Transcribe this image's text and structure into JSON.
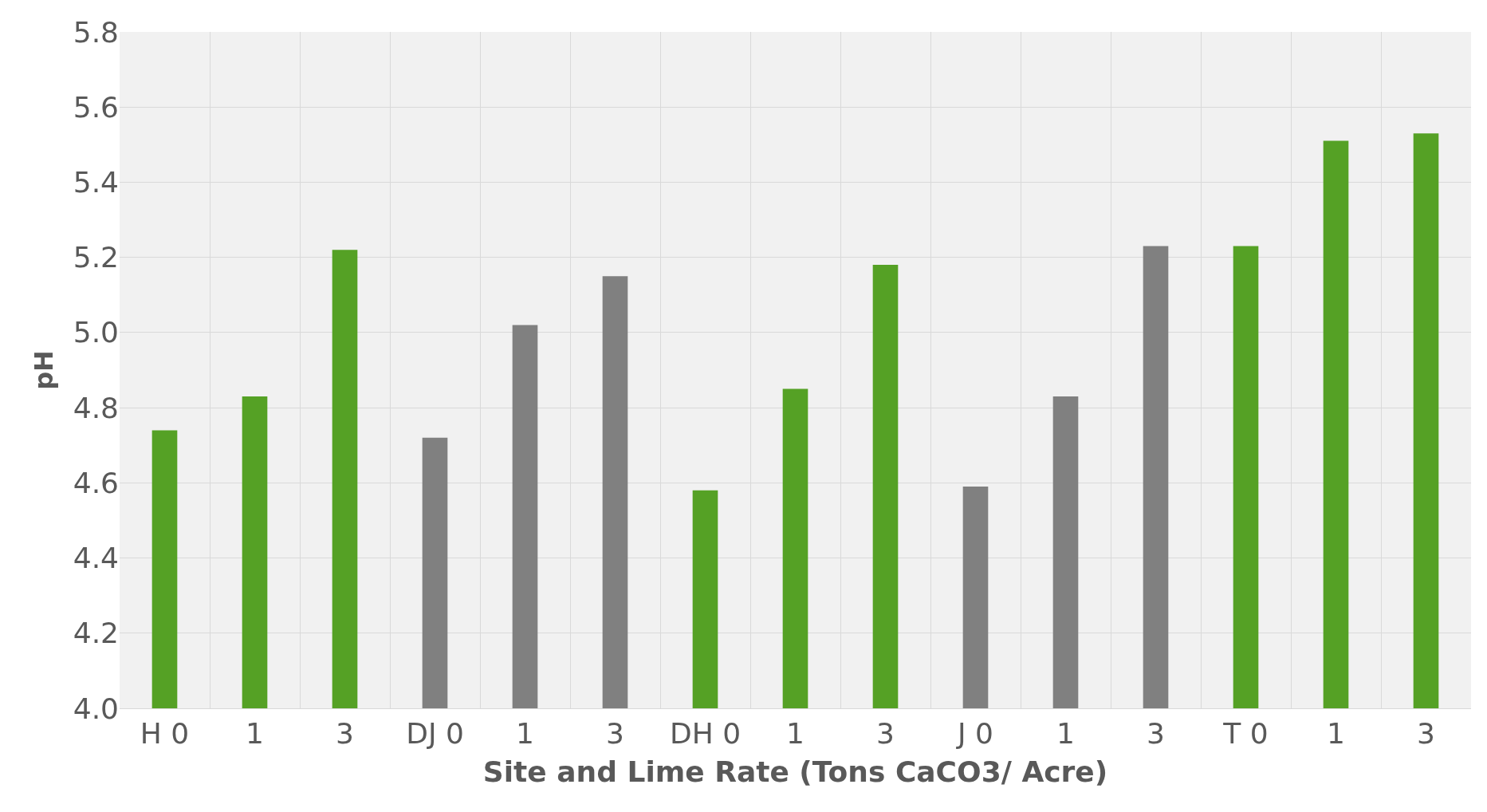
{
  "chart_data": {
    "type": "bar",
    "xlabel": "Site and Lime Rate (Tons CaCO3/ Acre)",
    "ylabel": "pH",
    "categories": [
      "H 0",
      "1",
      "3",
      "DJ 0",
      "1",
      "3",
      "DH 0",
      "1",
      "3",
      "J 0",
      "1",
      "3",
      "T 0",
      "1",
      "3"
    ],
    "values": [
      4.74,
      4.83,
      5.22,
      4.72,
      5.02,
      5.15,
      4.58,
      4.85,
      5.18,
      4.59,
      4.83,
      5.23,
      5.23,
      5.51,
      5.53
    ],
    "colors": [
      "#55a125",
      "#55a125",
      "#55a125",
      "#808080",
      "#808080",
      "#808080",
      "#55a125",
      "#55a125",
      "#55a125",
      "#808080",
      "#808080",
      "#808080",
      "#55a125",
      "#55a125",
      "#55a125"
    ],
    "ylim": [
      4.0,
      5.8
    ],
    "yticks": [
      {
        "value": 4.0,
        "label": "4.0"
      },
      {
        "value": 4.2,
        "label": "4.2"
      },
      {
        "value": 4.4,
        "label": "4.4"
      },
      {
        "value": 4.6,
        "label": "4.6"
      },
      {
        "value": 4.8,
        "label": "4.8"
      },
      {
        "value": 5.0,
        "label": "5.0"
      },
      {
        "value": 5.2,
        "label": "5.2"
      },
      {
        "value": 5.4,
        "label": "5.4"
      },
      {
        "value": 5.6,
        "label": "5.6"
      },
      {
        "value": 5.8,
        "label": "5.8"
      }
    ],
    "grid": true
  }
}
